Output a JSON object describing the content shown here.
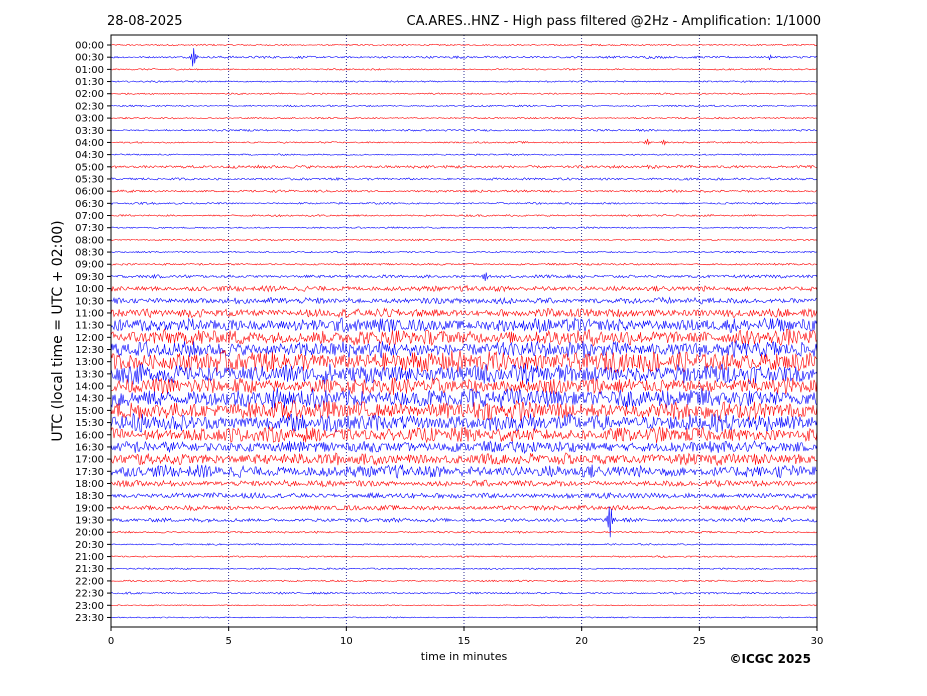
{
  "header": {
    "date": "28-08-2025",
    "title": "CA.ARES..HNZ - High pass filtered @2Hz - Amplification: 1/1000"
  },
  "copyright": "©ICGC 2025",
  "colors": {
    "red": "#ff0000",
    "blue": "#0000ff",
    "grid": "#00007a",
    "axis": "#000000"
  },
  "chart_data": {
    "type": "line",
    "title": "CA.ARES..HNZ - High pass filtered @2Hz - Amplification: 1/1000",
    "xlabel": "time in minutes",
    "ylabel": "UTC (local time = UTC + 02:00)",
    "xlim": [
      0,
      30
    ],
    "x_ticks": [
      0,
      5,
      10,
      15,
      20,
      25,
      30
    ],
    "x_tick_labels": [
      "0",
      "5",
      "10",
      "15",
      "20",
      "25",
      "30"
    ],
    "grid": "vertical dotted at 5-minute intervals",
    "traces": [
      {
        "label": "00:00",
        "color": "red",
        "amplitude": 0.04
      },
      {
        "label": "00:30",
        "color": "blue",
        "amplitude": 0.06,
        "events": [
          {
            "t": 3.5,
            "amp": 0.55
          },
          {
            "t": 28.0,
            "amp": 0.12
          }
        ]
      },
      {
        "label": "01:00",
        "color": "red",
        "amplitude": 0.04
      },
      {
        "label": "01:30",
        "color": "blue",
        "amplitude": 0.04
      },
      {
        "label": "02:00",
        "color": "red",
        "amplitude": 0.04
      },
      {
        "label": "02:30",
        "color": "blue",
        "amplitude": 0.04
      },
      {
        "label": "03:00",
        "color": "red",
        "amplitude": 0.04
      },
      {
        "label": "03:30",
        "color": "blue",
        "amplitude": 0.05
      },
      {
        "label": "04:00",
        "color": "red",
        "amplitude": 0.04,
        "events": [
          {
            "t": 22.8,
            "amp": 0.15
          },
          {
            "t": 23.5,
            "amp": 0.18
          }
        ]
      },
      {
        "label": "04:30",
        "color": "blue",
        "amplitude": 0.04
      },
      {
        "label": "05:00",
        "color": "red",
        "amplitude": 0.08
      },
      {
        "label": "05:30",
        "color": "blue",
        "amplitude": 0.06
      },
      {
        "label": "06:00",
        "color": "red",
        "amplitude": 0.06
      },
      {
        "label": "06:30",
        "color": "blue",
        "amplitude": 0.05
      },
      {
        "label": "07:00",
        "color": "red",
        "amplitude": 0.05
      },
      {
        "label": "07:30",
        "color": "blue",
        "amplitude": 0.04
      },
      {
        "label": "08:00",
        "color": "red",
        "amplitude": 0.04
      },
      {
        "label": "08:30",
        "color": "blue",
        "amplitude": 0.04
      },
      {
        "label": "09:00",
        "color": "red",
        "amplitude": 0.05
      },
      {
        "label": "09:30",
        "color": "blue",
        "amplitude": 0.08,
        "events": [
          {
            "t": 15.9,
            "amp": 0.25
          }
        ]
      },
      {
        "label": "10:00",
        "color": "red",
        "amplitude": 0.14
      },
      {
        "label": "10:30",
        "color": "blue",
        "amplitude": 0.16
      },
      {
        "label": "11:00",
        "color": "red",
        "amplitude": 0.22
      },
      {
        "label": "11:30",
        "color": "blue",
        "amplitude": 0.35
      },
      {
        "label": "12:00",
        "color": "red",
        "amplitude": 0.4
      },
      {
        "label": "12:30",
        "color": "blue",
        "amplitude": 0.42
      },
      {
        "label": "13:00",
        "color": "red",
        "amplitude": 0.55
      },
      {
        "label": "13:30",
        "color": "blue",
        "amplitude": 0.5
      },
      {
        "label": "14:00",
        "color": "red",
        "amplitude": 0.42
      },
      {
        "label": "14:30",
        "color": "blue",
        "amplitude": 0.5
      },
      {
        "label": "15:00",
        "color": "red",
        "amplitude": 0.48
      },
      {
        "label": "15:30",
        "color": "blue",
        "amplitude": 0.45
      },
      {
        "label": "16:00",
        "color": "red",
        "amplitude": 0.38
      },
      {
        "label": "16:30",
        "color": "blue",
        "amplitude": 0.3
      },
      {
        "label": "17:00",
        "color": "red",
        "amplitude": 0.3
      },
      {
        "label": "17:30",
        "color": "blue",
        "amplitude": 0.32
      },
      {
        "label": "18:00",
        "color": "red",
        "amplitude": 0.16
      },
      {
        "label": "18:30",
        "color": "blue",
        "amplitude": 0.14
      },
      {
        "label": "19:00",
        "color": "red",
        "amplitude": 0.12
      },
      {
        "label": "19:30",
        "color": "blue",
        "amplitude": 0.1,
        "events": [
          {
            "t": 21.2,
            "amp": 1.0
          }
        ]
      },
      {
        "label": "20:00",
        "color": "red",
        "amplitude": 0.05
      },
      {
        "label": "20:30",
        "color": "blue",
        "amplitude": 0.04
      },
      {
        "label": "21:00",
        "color": "red",
        "amplitude": 0.04
      },
      {
        "label": "21:30",
        "color": "blue",
        "amplitude": 0.04
      },
      {
        "label": "22:00",
        "color": "red",
        "amplitude": 0.04
      },
      {
        "label": "22:30",
        "color": "blue",
        "amplitude": 0.05
      },
      {
        "label": "23:00",
        "color": "red",
        "amplitude": 0.03
      },
      {
        "label": "23:30",
        "color": "blue",
        "amplitude": 0.03
      }
    ]
  }
}
